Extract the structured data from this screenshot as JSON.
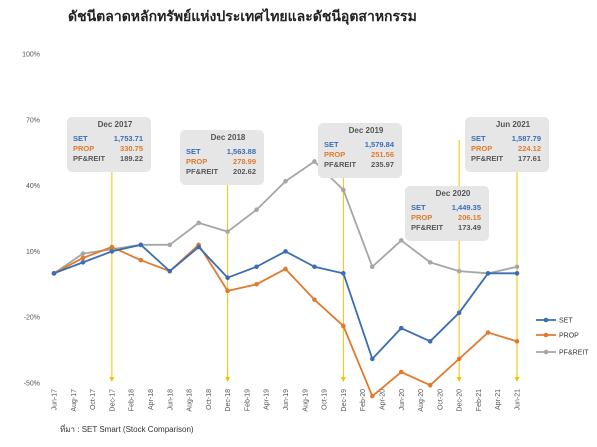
{
  "title": "ดัชนีตลาดหลักทรัพย์แห่งประเทศไทยและดัชนีอุตสาหกรรม",
  "source": "ที่มา : SET Smart (Stock Comparison)",
  "colors": {
    "SET": "#3a6db3",
    "PROP": "#e07b2e",
    "PF&REIT": "#a6a6a6",
    "marker_line": "#f2c200",
    "box_bg": "#e6e6e6"
  },
  "chart_data": {
    "type": "line",
    "title": "ดัชนีตลาดหลักทรัพย์แห่งประเทศไทยและดัชนีอุตสาหกรรม",
    "xlabel": "",
    "ylabel": "",
    "y_ticks": [
      "100%",
      "70%",
      "40%",
      "10%",
      "-20%",
      "-50%"
    ],
    "y_tick_values": [
      100,
      70,
      40,
      10,
      -20,
      -50
    ],
    "ylim": [
      -50,
      100
    ],
    "grid": false,
    "legend_position": "right",
    "x": [
      "Jun-17",
      "Jul-17",
      "Aug-17",
      "Sep-17",
      "Oct-17",
      "Nov-17",
      "Dec-17",
      "Jan-18",
      "Feb-18",
      "Mar-18",
      "Apr-18",
      "May-18",
      "Jun-18",
      "Jul-18",
      "Aug-18",
      "Sep-18",
      "Oct-18",
      "Nov-18",
      "Dec-18",
      "Jan-19",
      "Feb-19",
      "Mar-19",
      "Apr-19",
      "May-19",
      "Jun-19",
      "Jul-19",
      "Aug-19",
      "Sep-19",
      "Oct-19",
      "Nov-19",
      "Dec-19",
      "Jan-20",
      "Feb-20",
      "Mar-20",
      "Apr-20",
      "May-20",
      "Jun-20",
      "Jul-20",
      "Aug-20",
      "Sep-20",
      "Oct-20",
      "Nov-20",
      "Dec-20",
      "Jan-21",
      "Feb-21",
      "Mar-21",
      "Apr-21",
      "May-21",
      "Jun-21"
    ],
    "x_tick_labels": [
      "Jun-17",
      "Aug-17",
      "Oct-17",
      "Dec-17",
      "Feb-18",
      "Apr-18",
      "Jun-18",
      "Aug-18",
      "Oct-18",
      "Dec-18",
      "Feb-19",
      "Apr-19",
      "Jun-19",
      "Aug-19",
      "Oct-19",
      "Dec-19",
      "Feb-20",
      "Apr-20",
      "Jun-20",
      "Aug-20",
      "Oct-20",
      "Dec-20",
      "Feb-21",
      "Apr-21",
      "Jun-21"
    ],
    "series": [
      {
        "name": "SET",
        "points": [
          [
            "Jun-17",
            0
          ],
          [
            "Sep-17",
            5
          ],
          [
            "Dec-17",
            10
          ],
          [
            "Mar-18",
            13
          ],
          [
            "Jun-18",
            1
          ],
          [
            "Sep-18",
            12
          ],
          [
            "Dec-18",
            -2
          ],
          [
            "Mar-19",
            3
          ],
          [
            "Jun-19",
            10
          ],
          [
            "Sep-19",
            3
          ],
          [
            "Dec-19",
            0
          ],
          [
            "Mar-20",
            -39
          ],
          [
            "Jun-20",
            -25
          ],
          [
            "Sep-20",
            -31
          ],
          [
            "Dec-20",
            -18
          ],
          [
            "Mar-21",
            0
          ],
          [
            "Jun-21",
            0
          ]
        ]
      },
      {
        "name": "PROP",
        "points": [
          [
            "Jun-17",
            0
          ],
          [
            "Sep-17",
            7
          ],
          [
            "Dec-17",
            12
          ],
          [
            "Mar-18",
            6
          ],
          [
            "Jun-18",
            1
          ],
          [
            "Sep-18",
            13
          ],
          [
            "Dec-18",
            -8
          ],
          [
            "Mar-19",
            -5
          ],
          [
            "Jun-19",
            2
          ],
          [
            "Sep-19",
            -12
          ],
          [
            "Dec-19",
            -24
          ],
          [
            "Mar-20",
            -56
          ],
          [
            "Jun-20",
            -45
          ],
          [
            "Sep-20",
            -51
          ],
          [
            "Dec-20",
            -39
          ],
          [
            "Mar-21",
            -27
          ],
          [
            "Jun-21",
            -31
          ]
        ]
      },
      {
        "name": "PF&REIT",
        "points": [
          [
            "Jun-17",
            0
          ],
          [
            "Sep-17",
            9
          ],
          [
            "Dec-17",
            11
          ],
          [
            "Mar-18",
            13
          ],
          [
            "Jun-18",
            13
          ],
          [
            "Sep-18",
            23
          ],
          [
            "Dec-18",
            19
          ],
          [
            "Mar-19",
            29
          ],
          [
            "Jun-19",
            42
          ],
          [
            "Sep-19",
            51
          ],
          [
            "Dec-19",
            38
          ],
          [
            "Mar-20",
            3
          ],
          [
            "Jun-20",
            15
          ],
          [
            "Sep-20",
            5
          ],
          [
            "Dec-20",
            1
          ],
          [
            "Mar-21",
            0
          ],
          [
            "Jun-21",
            3
          ]
        ]
      }
    ],
    "annotations": [
      {
        "month": "Dec-17",
        "title": "Dec 2017",
        "SET": "1,753.71",
        "PROP": "330.75",
        "PF&REIT": "189.22"
      },
      {
        "month": "Dec-18",
        "title": "Dec 2018",
        "SET": "1,563.88",
        "PROP": "278.99",
        "PF&REIT": "202.62"
      },
      {
        "month": "Dec-19",
        "title": "Dec 2019",
        "SET": "1,579.84",
        "PROP": "251.56",
        "PF&REIT": "235.97"
      },
      {
        "month": "Dec-20",
        "title": "Dec 2020",
        "SET": "1,449.35",
        "PROP": "206.15",
        "PF&REIT": "173.49"
      },
      {
        "month": "Jun-21",
        "title": "Jun 2021",
        "SET": "1,587.79",
        "PROP": "224.12",
        "PF&REIT": "177.61"
      }
    ]
  }
}
